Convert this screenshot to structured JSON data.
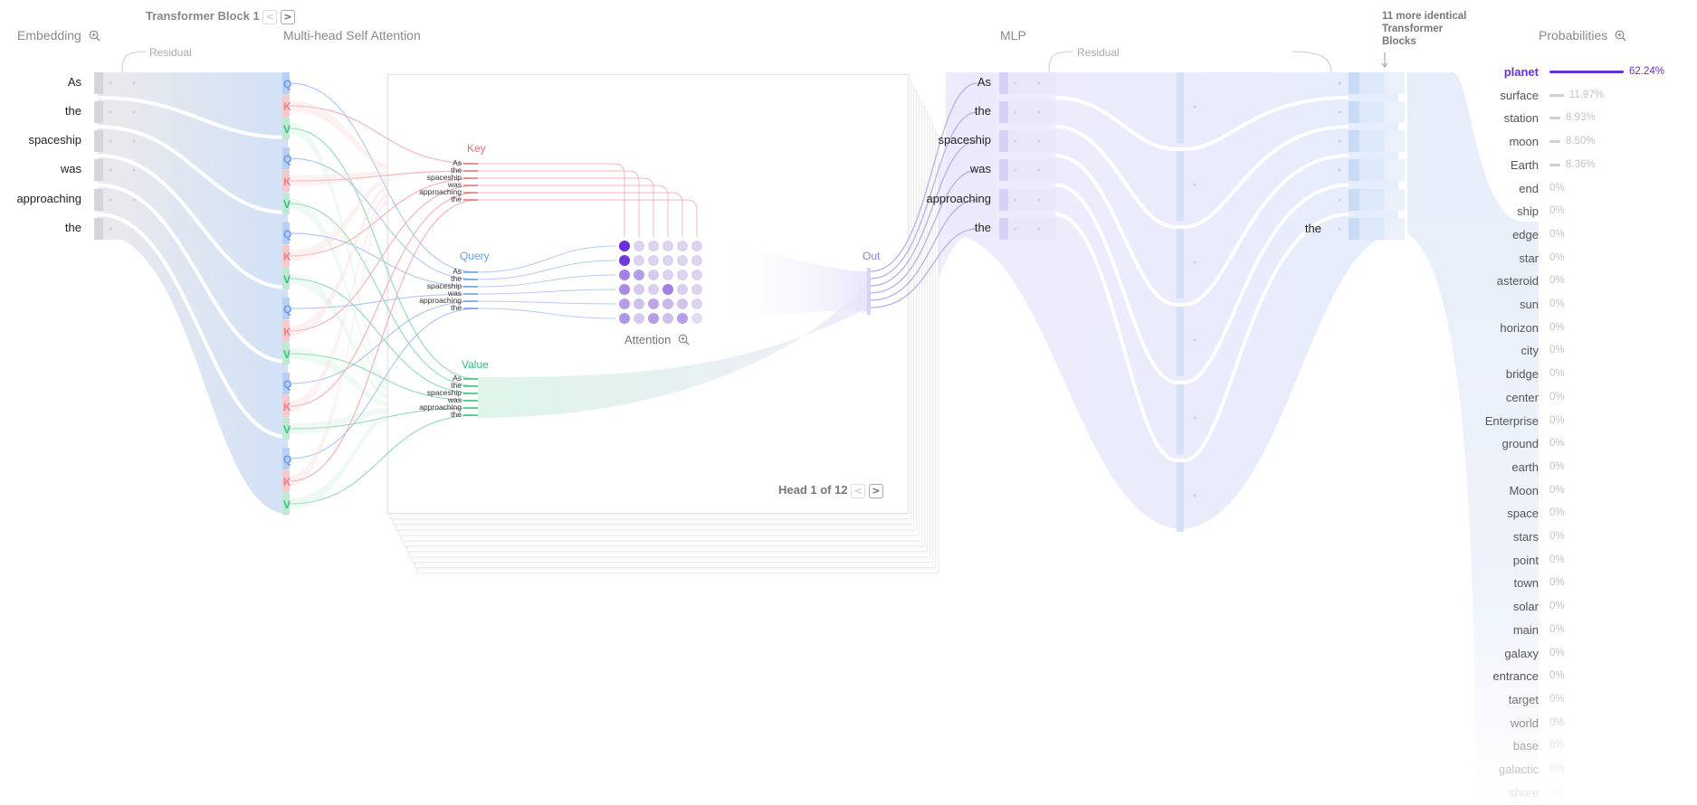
{
  "header": {
    "embedding_label": "Embedding",
    "block_title": "Transformer Block 1",
    "mhsa_label": "Multi-head Self Attention",
    "residual_label": "Residual",
    "mlp_label": "MLP",
    "residual2_label": "Residual",
    "more_blocks_line1": "11 more identical",
    "more_blocks_line2": "Transformer",
    "more_blocks_line3": "Blocks",
    "probabilities_label": "Probabilities",
    "prev_block": "<",
    "next_block": ">"
  },
  "tokens": [
    "As",
    "the",
    "spaceship",
    "was",
    "approaching",
    "the"
  ],
  "qkv_letters": [
    "Q",
    "K",
    "V"
  ],
  "attention": {
    "key_label": "Key",
    "query_label": "Query",
    "value_label": "Value",
    "out_label": "Out",
    "attention_label": "Attention",
    "head_text": "Head 1 of 12",
    "prev_head": "<",
    "next_head": ">"
  },
  "mlp_output_token": "the",
  "colors": {
    "query": "#6a9be8",
    "key": "#ef7f86",
    "value": "#38c07e",
    "accent": "#6a2fd6",
    "embedding": "#c9d7f2"
  },
  "probabilities": [
    {
      "word": "planet",
      "value": "62.24%",
      "p": 62.24
    },
    {
      "word": "surface",
      "value": "11.97%",
      "p": 11.97
    },
    {
      "word": "station",
      "value": "8.93%",
      "p": 8.93
    },
    {
      "word": "moon",
      "value": "8.50%",
      "p": 8.5
    },
    {
      "word": "Earth",
      "value": "8.36%",
      "p": 8.36
    },
    {
      "word": "end",
      "value": "0%",
      "p": 0
    },
    {
      "word": "ship",
      "value": "0%",
      "p": 0
    },
    {
      "word": "edge",
      "value": "0%",
      "p": 0
    },
    {
      "word": "star",
      "value": "0%",
      "p": 0
    },
    {
      "word": "asteroid",
      "value": "0%",
      "p": 0
    },
    {
      "word": "sun",
      "value": "0%",
      "p": 0
    },
    {
      "word": "horizon",
      "value": "0%",
      "p": 0
    },
    {
      "word": "city",
      "value": "0%",
      "p": 0
    },
    {
      "word": "bridge",
      "value": "0%",
      "p": 0
    },
    {
      "word": "center",
      "value": "0%",
      "p": 0
    },
    {
      "word": "Enterprise",
      "value": "0%",
      "p": 0
    },
    {
      "word": "ground",
      "value": "0%",
      "p": 0
    },
    {
      "word": "earth",
      "value": "0%",
      "p": 0
    },
    {
      "word": "Moon",
      "value": "0%",
      "p": 0
    },
    {
      "word": "space",
      "value": "0%",
      "p": 0
    },
    {
      "word": "stars",
      "value": "0%",
      "p": 0
    },
    {
      "word": "point",
      "value": "0%",
      "p": 0
    },
    {
      "word": "town",
      "value": "0%",
      "p": 0
    },
    {
      "word": "solar",
      "value": "0%",
      "p": 0
    },
    {
      "word": "main",
      "value": "0%",
      "p": 0
    },
    {
      "word": "galaxy",
      "value": "0%",
      "p": 0
    },
    {
      "word": "entrance",
      "value": "0%",
      "p": 0
    },
    {
      "word": "target",
      "value": "0%",
      "p": 0
    },
    {
      "word": "world",
      "value": "0%",
      "p": 0
    },
    {
      "word": "base",
      "value": "0%",
      "p": 0
    },
    {
      "word": "galactic",
      "value": "0%",
      "p": 0
    },
    {
      "word": "shore",
      "value": "0%",
      "p": 0
    }
  ],
  "attention_matrix": [
    [
      1.0,
      0.1,
      0.1,
      0.1,
      0.1,
      0.1
    ],
    [
      0.95,
      0.1,
      0.1,
      0.1,
      0.1,
      0.1
    ],
    [
      0.55,
      0.4,
      0.15,
      0.1,
      0.1,
      0.1
    ],
    [
      0.5,
      0.15,
      0.12,
      0.55,
      0.12,
      0.1
    ],
    [
      0.4,
      0.2,
      0.35,
      0.25,
      0.18,
      0.1
    ],
    [
      0.45,
      0.15,
      0.4,
      0.2,
      0.4,
      0.05
    ]
  ]
}
